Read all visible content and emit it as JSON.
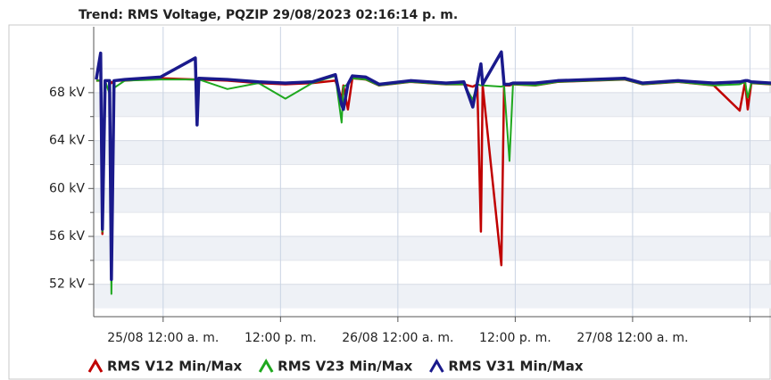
{
  "chart_data": {
    "type": "line",
    "title": "Trend: RMS Voltage, PQZIP 29/08/2023 02:16:14 p. m.",
    "x": [
      -6.84,
      -6.39,
      -6.21,
      -5.93,
      -5.48,
      -5.29,
      -5.02,
      -3.92,
      -0.27,
      3.29,
      3.47,
      3.65,
      6.57,
      9.76,
      12.5,
      15.24,
      17.61,
      18.25,
      18.43,
      18.89,
      19.35,
      20.72,
      22.08,
      25.28,
      28.93,
      30.75,
      31.66,
      32.12,
      32.49,
      32.67,
      34.58,
      34.86,
      35.41,
      35.77,
      38.05,
      40.33,
      47.18,
      49.0,
      52.65,
      56.3,
      58.95,
      59.5,
      59.77,
      60.14,
      62.15
    ],
    "series": [
      {
        "name": "RMS V12 Min/Max",
        "color": "#c00000",
        "values": [
          69.0,
          69.0,
          56.2,
          69.0,
          69.0,
          68.8,
          69.0,
          69.0,
          69.2,
          69.1,
          69.1,
          69.1,
          69.0,
          68.8,
          68.7,
          68.8,
          69.0,
          67.5,
          68.6,
          66.6,
          69.2,
          69.1,
          68.6,
          68.9,
          68.7,
          68.7,
          68.5,
          68.7,
          56.4,
          68.6,
          53.6,
          68.6,
          68.6,
          68.7,
          68.6,
          68.9,
          69.1,
          68.7,
          68.9,
          68.6,
          66.5,
          68.9,
          66.6,
          68.8,
          68.7
        ]
      },
      {
        "name": "RMS V23 Min/Max",
        "color": "#1fa81f",
        "values": [
          69.0,
          69.0,
          56.4,
          69.0,
          67.9,
          51.2,
          68.4,
          69.0,
          69.1,
          69.1,
          69.1,
          69.1,
          68.3,
          68.8,
          67.5,
          68.8,
          69.4,
          65.5,
          68.5,
          68.7,
          69.2,
          69.1,
          68.6,
          68.9,
          68.7,
          68.7,
          67.4,
          68.7,
          68.6,
          68.6,
          68.5,
          68.6,
          62.3,
          68.7,
          68.6,
          68.9,
          69.1,
          68.7,
          68.9,
          68.6,
          68.7,
          68.9,
          67.6,
          68.8,
          68.7
        ]
      },
      {
        "name": "RMS V31 Min/Max",
        "color": "#1a1a8c",
        "values": [
          69.1,
          71.3,
          56.6,
          69.0,
          69.0,
          52.4,
          69.0,
          69.1,
          69.3,
          70.9,
          65.3,
          69.2,
          69.1,
          68.9,
          68.8,
          68.9,
          69.5,
          67.0,
          66.6,
          68.7,
          69.4,
          69.3,
          68.7,
          69.0,
          68.8,
          68.9,
          66.8,
          68.8,
          70.4,
          68.7,
          71.4,
          68.7,
          68.7,
          68.8,
          68.8,
          69.0,
          69.2,
          68.8,
          69.0,
          68.8,
          68.9,
          69.0,
          69.0,
          68.9,
          68.8
        ]
      }
    ],
    "xlim": [
      -7.1,
      62.15
    ],
    "xticks": [
      {
        "value": 0,
        "label": "25/08 12:00 a. m."
      },
      {
        "value": 12,
        "label": "12:00 p. m."
      },
      {
        "value": 24,
        "label": "26/08 12:00 a. m."
      },
      {
        "value": 36,
        "label": "12:00 p. m."
      },
      {
        "value": 48,
        "label": "27/08 12:00 a. m."
      },
      {
        "value": 60,
        "label": null
      }
    ],
    "ylim": [
      49.3,
      73.5
    ],
    "yticks": [
      {
        "value": 52,
        "label": "52 kV"
      },
      {
        "value": 56,
        "label": "56 kV"
      },
      {
        "value": 60,
        "label": "60 kV"
      },
      {
        "value": 64,
        "label": "64 kV"
      },
      {
        "value": 68,
        "label": "68 kV"
      }
    ],
    "grid": true
  }
}
